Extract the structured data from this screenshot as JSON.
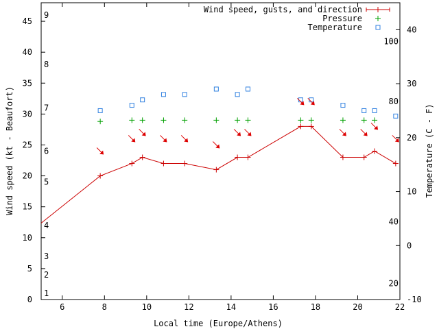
{
  "chart_data": {
    "type": "line",
    "xlabel": "Local time (Europe/Athens)",
    "ylabel": "Wind speed (kt - Beaufort)",
    "y2label": "Temperature (C - F)",
    "xlim": [
      5,
      22
    ],
    "ylim": [
      0,
      48
    ],
    "y2lim": [
      -10,
      45
    ],
    "x_ticks": [
      6,
      8,
      10,
      12,
      14,
      16,
      18,
      20,
      22
    ],
    "y_ticks": [
      0,
      5,
      10,
      15,
      20,
      25,
      30,
      35,
      40,
      45
    ],
    "y2_ticks": [
      -10,
      0,
      10,
      20,
      30,
      40
    ],
    "beaufort_labels": [
      {
        "label": "1",
        "kt": 1
      },
      {
        "label": "2",
        "kt": 4
      },
      {
        "label": "3",
        "kt": 7
      },
      {
        "label": "4",
        "kt": 12
      },
      {
        "label": "5",
        "kt": 19
      },
      {
        "label": "6",
        "kt": 24
      },
      {
        "label": "7",
        "kt": 31
      },
      {
        "label": "8",
        "kt": 38
      },
      {
        "label": "9",
        "kt": 46
      }
    ],
    "fahrenheit_labels": [
      {
        "label": "20",
        "celsius": -7
      },
      {
        "label": "40",
        "celsius": 4.4
      },
      {
        "label": "80",
        "celsius": 26.7
      },
      {
        "label": "100",
        "celsius": 37.8
      }
    ],
    "legend_position": "top-right",
    "series": [
      {
        "name": "Wind speed, gusts, and direction",
        "color": "#cc0000",
        "x": [
          4.5,
          7.8,
          9.3,
          9.8,
          10.8,
          11.8,
          13.3,
          14.3,
          14.8,
          17.3,
          17.8,
          19.3,
          20.3,
          20.8,
          21.8
        ],
        "y": [
          11,
          20,
          22,
          23,
          22,
          22,
          21,
          23,
          23,
          28,
          28,
          23,
          23,
          24,
          22
        ]
      },
      {
        "name": "Pressure",
        "color": "#00a000",
        "x": [
          7.8,
          9.3,
          9.8,
          10.8,
          11.8,
          13.3,
          14.3,
          14.8,
          17.3,
          17.8,
          19.3,
          20.3,
          20.8
        ],
        "y": [
          28.8,
          29.0,
          29.0,
          29.0,
          29.0,
          29.0,
          29.0,
          29.0,
          29.0,
          29.0,
          29.0,
          29.0,
          29.0
        ]
      },
      {
        "name": "Temperature",
        "color": "#3080e0",
        "x": [
          7.8,
          9.3,
          9.8,
          10.8,
          11.8,
          13.3,
          14.3,
          14.8,
          17.3,
          17.8,
          19.3,
          20.3,
          20.8,
          21.8
        ],
        "y": [
          25,
          26,
          27,
          28,
          28,
          29,
          28,
          29,
          27,
          27,
          26,
          25,
          25,
          24
        ]
      }
    ],
    "wind_direction_markers": {
      "color": "#dd0000",
      "points": [
        {
          "x": 7.8,
          "y": 24
        },
        {
          "x": 9.3,
          "y": 26
        },
        {
          "x": 9.8,
          "y": 27
        },
        {
          "x": 10.8,
          "y": 26
        },
        {
          "x": 11.8,
          "y": 26
        },
        {
          "x": 13.3,
          "y": 25
        },
        {
          "x": 14.3,
          "y": 27
        },
        {
          "x": 14.8,
          "y": 27
        },
        {
          "x": 17.3,
          "y": 32
        },
        {
          "x": 17.8,
          "y": 32
        },
        {
          "x": 19.3,
          "y": 27
        },
        {
          "x": 20.3,
          "y": 27
        },
        {
          "x": 20.8,
          "y": 28
        },
        {
          "x": 21.8,
          "y": 26
        }
      ]
    }
  }
}
